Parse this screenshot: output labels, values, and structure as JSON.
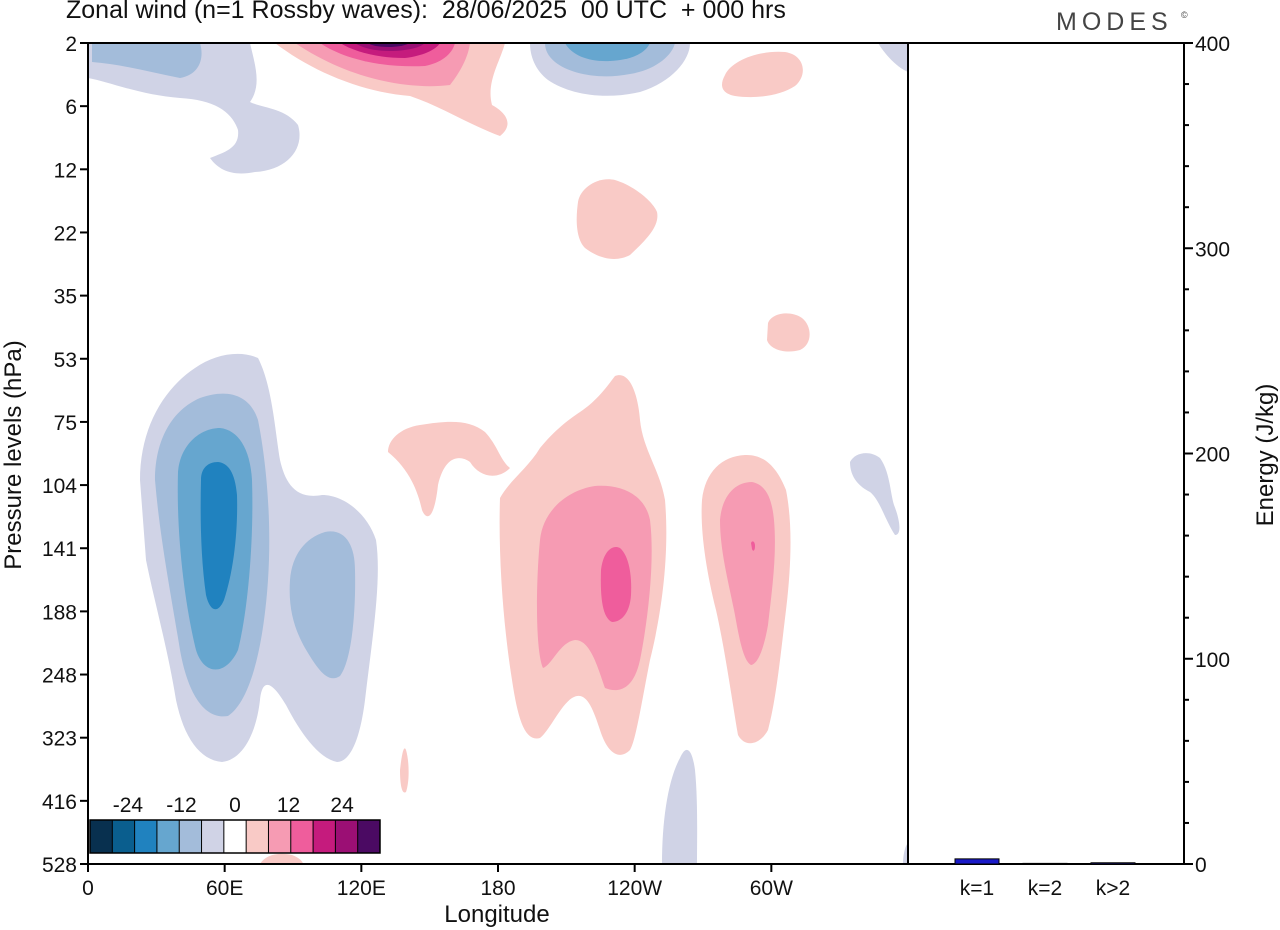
{
  "title": "Zonal wind (n=1 Rossby waves):  28/06/2025  00 UTC  + 000 hrs",
  "brand": "MODES",
  "brand_mark": "©",
  "chart_data": [
    {
      "type": "heatmap",
      "xlabel": "Longitude",
      "ylabel": "Pressure levels (hPa)",
      "x_ticks": [
        "0",
        "60E",
        "120E",
        "180",
        "120W",
        "60W"
      ],
      "x_tick_values_deg": [
        0,
        60,
        120,
        180,
        240,
        300
      ],
      "xlim_deg": [
        0,
        360
      ],
      "y_ticks": [
        "2",
        "6",
        "12",
        "22",
        "35",
        "53",
        "75",
        "104",
        "141",
        "188",
        "248",
        "323",
        "416",
        "528"
      ],
      "y_order": "top-to-bottom",
      "colorbar": {
        "labels": [
          "-24",
          "-12",
          "0",
          "12",
          "24"
        ],
        "levels": [
          -30,
          -25,
          -20,
          -15,
          -10,
          -5,
          0,
          5,
          10,
          15,
          20,
          25,
          30
        ],
        "colors": [
          "#08304f",
          "#0a5e8e",
          "#2082bf",
          "#66a6cf",
          "#a3bcda",
          "#d0d3e6",
          "#ffffff",
          "#f9cac6",
          "#f69bb3",
          "#ef5d9c",
          "#c51b7d",
          "#9b0f74",
          "#4b0a63"
        ]
      },
      "features": [
        {
          "sign": "easterly",
          "near_lon": 55,
          "near_level_hPa": "141",
          "peak_approx": -16
        },
        {
          "sign": "easterly",
          "near_lon": 107,
          "near_level_hPa": "188",
          "peak_approx": -9
        },
        {
          "sign": "easterly",
          "near_lon": 25,
          "near_level_hPa": "2",
          "peak_approx": -8
        },
        {
          "sign": "easterly",
          "near_lon": 230,
          "near_level_hPa": "2",
          "peak_approx": -14
        },
        {
          "sign": "westerly",
          "near_lon": 127,
          "near_level_hPa": "2",
          "peak_approx": 26
        },
        {
          "sign": "westerly",
          "near_lon": 230,
          "near_level_hPa": "141",
          "peak_approx": 13
        },
        {
          "sign": "westerly",
          "near_lon": 290,
          "near_level_hPa": "141",
          "peak_approx": 11
        },
        {
          "sign": "westerly",
          "near_lon": 160,
          "near_level_hPa": "104",
          "peak_approx": 4
        }
      ]
    },
    {
      "type": "bar",
      "categories": [
        "k=1",
        "k=2",
        "k>2"
      ],
      "values": [
        2.5,
        0.3,
        0.6
      ],
      "ylabel": "Energy (J/kg)",
      "ylim": [
        0,
        400
      ],
      "y_ticks": [
        "0",
        "100",
        "200",
        "300",
        "400"
      ],
      "y_tick_values": [
        0,
        100,
        200,
        300,
        400
      ],
      "bar_color": "#1a1ac8"
    }
  ]
}
